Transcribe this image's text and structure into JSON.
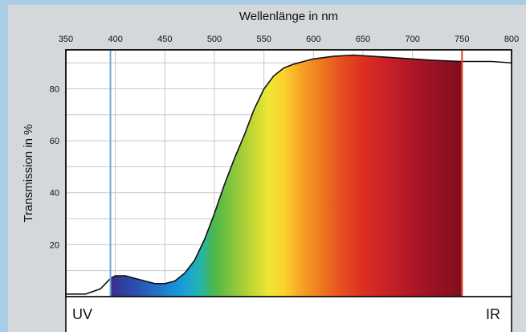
{
  "chart_data": {
    "type": "area",
    "title": "",
    "xlabel": "Wellenlänge in nm",
    "ylabel": "Transmission in %",
    "xlim": [
      350,
      800
    ],
    "ylim": [
      0,
      95
    ],
    "x_ticks": [
      350,
      400,
      450,
      500,
      550,
      600,
      650,
      700,
      750,
      800
    ],
    "y_ticks": [
      20,
      40,
      60,
      80
    ],
    "grid": true,
    "markers": [
      {
        "x": 395,
        "color": "#6fa8d8"
      },
      {
        "x": 750,
        "color": "#e0402a"
      }
    ],
    "region_labels": {
      "left": "UV",
      "right": "IR"
    },
    "series": [
      {
        "x": [
          350,
          370,
          385,
          395,
          400,
          410,
          420,
          430,
          440,
          450,
          460,
          470,
          480,
          490,
          500,
          510,
          520,
          530,
          540,
          550,
          560,
          570,
          580,
          590,
          600,
          620,
          640,
          660,
          680,
          700,
          720,
          750,
          780,
          800
        ],
        "y": [
          1,
          1,
          3,
          7,
          8,
          8,
          7,
          6,
          5,
          5,
          6,
          9,
          14,
          22,
          32,
          43,
          53,
          62,
          72,
          80,
          85,
          88,
          89.5,
          90.5,
          91.5,
          92.5,
          93,
          92.5,
          92,
          91.5,
          91,
          90.5,
          90.5,
          90
        ]
      }
    ]
  }
}
